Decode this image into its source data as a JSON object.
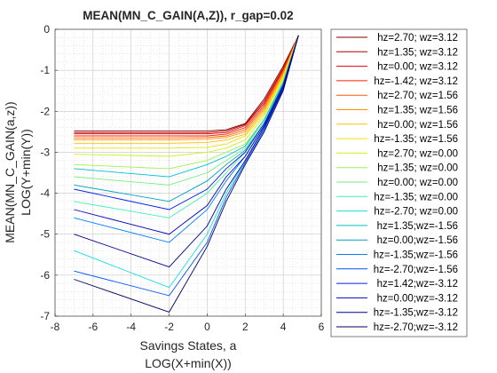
{
  "chart_data": {
    "type": "line",
    "title": "MEAN(MN_C_GAIN(A,Z)), r_gap=0.02",
    "xlabel": [
      "Savings States, a",
      "LOG(X+min(X))"
    ],
    "ylabel": [
      "MEAN(MN_C_GAIN(a,z))",
      "LOG(Y+min(Y))"
    ],
    "xlim": [
      -8,
      6
    ],
    "ylim": [
      -7,
      0
    ],
    "xticks": [
      -8,
      -6,
      -4,
      -2,
      0,
      2,
      4,
      6
    ],
    "yticks": [
      -7,
      -6,
      -5,
      -4,
      -3,
      -2,
      -1,
      0
    ],
    "grid": true,
    "minor_grid": true,
    "legend_position": "outside-right",
    "series_note": "Roughly 40 line series (many unlabeled) colored from dark blue through cyan/green/yellow to dark red; all converge to about y=-0.15 at x=4.8.",
    "series": [
      {
        "name": "hz=2.70; wz=3.12",
        "color": "#800000",
        "x": [
          -7,
          -2,
          0,
          1,
          2,
          3,
          4,
          4.8
        ],
        "y": [
          -2.48,
          -2.48,
          -2.48,
          -2.45,
          -2.3,
          -1.7,
          -0.9,
          -0.15
        ]
      },
      {
        "name": "hz=1.35; wz=3.12",
        "color": "#b00000",
        "x": [
          -7,
          -2,
          0,
          1,
          2,
          3,
          4,
          4.8
        ],
        "y": [
          -2.52,
          -2.52,
          -2.52,
          -2.48,
          -2.32,
          -1.75,
          -0.95,
          -0.15
        ]
      },
      {
        "name": "hz=0.00; wz=3.12",
        "color": "#e00000",
        "x": [
          -7,
          -2,
          0,
          1,
          2,
          3,
          4,
          4.8
        ],
        "y": [
          -2.55,
          -2.55,
          -2.55,
          -2.52,
          -2.35,
          -1.8,
          -0.98,
          -0.15
        ]
      },
      {
        "name": "hz=-1.42; wz=3.12",
        "color": "#ff2000",
        "x": [
          -7,
          -2,
          0,
          1,
          2,
          3,
          4,
          4.8
        ],
        "y": [
          -2.6,
          -2.6,
          -2.6,
          -2.56,
          -2.4,
          -1.85,
          -1.0,
          -0.15
        ]
      },
      {
        "name": "hz=2.70; wz=1.56",
        "color": "#ff5a00",
        "x": [
          -7,
          -2,
          0,
          1,
          2,
          3,
          4,
          4.8
        ],
        "y": [
          -2.65,
          -2.65,
          -2.64,
          -2.6,
          -2.45,
          -1.9,
          -1.05,
          -0.15
        ]
      },
      {
        "name": "hz=1.35; wz=1.56",
        "color": "#ff9000",
        "x": [
          -7,
          -2,
          0,
          1,
          2,
          3,
          4,
          4.8
        ],
        "y": [
          -2.7,
          -2.7,
          -2.68,
          -2.64,
          -2.5,
          -1.95,
          -1.08,
          -0.15
        ]
      },
      {
        "name": "hz=0.00; wz=1.56",
        "color": "#ffc000",
        "x": [
          -7,
          -2,
          0,
          1,
          2,
          3,
          4,
          4.8
        ],
        "y": [
          -2.78,
          -2.78,
          -2.76,
          -2.7,
          -2.56,
          -2.0,
          -1.12,
          -0.15
        ]
      },
      {
        "name": "hz=-1.35; wz=1.56",
        "color": "#f0e000",
        "x": [
          -7,
          -2,
          0,
          1,
          2,
          3,
          4,
          4.8
        ],
        "y": [
          -2.9,
          -2.9,
          -2.88,
          -2.8,
          -2.6,
          -2.05,
          -1.15,
          -0.15
        ]
      },
      {
        "name": "hz=2.70; wz=0.00",
        "color": "#d0f020",
        "x": [
          -7,
          -2,
          0,
          1,
          2,
          3,
          4,
          4.8
        ],
        "y": [
          -3.05,
          -3.1,
          -3.0,
          -2.9,
          -2.7,
          -2.1,
          -1.2,
          -0.15
        ]
      },
      {
        "name": "hz=1.35; wz=0.00",
        "color": "#a0f050",
        "x": [
          -7,
          -2,
          0,
          1,
          2,
          3,
          4,
          4.8
        ],
        "y": [
          -3.3,
          -3.4,
          -3.2,
          -3.0,
          -2.8,
          -2.2,
          -1.25,
          -0.15
        ]
      },
      {
        "name": "hz=0.00; wz=0.00",
        "color": "#70f080",
        "x": [
          -7,
          -2,
          0,
          1,
          2,
          3,
          4,
          4.8
        ],
        "y": [
          -3.6,
          -3.8,
          -3.5,
          -3.2,
          -2.9,
          -2.25,
          -1.3,
          -0.15
        ]
      },
      {
        "name": "hz=-1.35; wz=0.00",
        "color": "#40f0b0",
        "x": [
          -7,
          -2,
          0,
          1,
          2,
          3,
          4,
          4.8
        ],
        "y": [
          -4.2,
          -4.6,
          -4.0,
          -3.5,
          -3.0,
          -2.3,
          -1.35,
          -0.15
        ]
      },
      {
        "name": "hz=-2.70; wz=0.00",
        "color": "#10e0e0",
        "x": [
          -7,
          -2,
          0,
          1,
          2,
          3,
          4,
          4.8
        ],
        "y": [
          -5.4,
          -6.3,
          -5.0,
          -4.0,
          -3.2,
          -2.4,
          -1.4,
          -0.15
        ]
      },
      {
        "name": "hz=1.35;wz=-1.56",
        "color": "#00c0d0",
        "x": [
          -7,
          -2,
          0,
          1,
          2,
          3,
          4,
          4.8
        ],
        "y": [
          -3.4,
          -3.6,
          -3.3,
          -3.1,
          -2.85,
          -2.2,
          -1.3,
          -0.15
        ]
      },
      {
        "name": "hz=0.00;wz=-1.56",
        "color": "#00a0c0",
        "x": [
          -7,
          -2,
          0,
          1,
          2,
          3,
          4,
          4.8
        ],
        "y": [
          -3.8,
          -4.2,
          -3.7,
          -3.3,
          -2.95,
          -2.3,
          -1.35,
          -0.15
        ]
      },
      {
        "name": "hz=-1.35;wz=-1.56",
        "color": "#0080ff",
        "x": [
          -7,
          -2,
          0,
          1,
          2,
          3,
          4,
          4.8
        ],
        "y": [
          -4.6,
          -5.2,
          -4.4,
          -3.7,
          -3.1,
          -2.35,
          -1.4,
          -0.15
        ]
      },
      {
        "name": "hz=-2.70;wz=-1.56",
        "color": "#0050ff",
        "x": [
          -7,
          -2,
          0,
          1,
          2,
          3,
          4,
          4.8
        ],
        "y": [
          -5.9,
          -6.5,
          -5.2,
          -4.1,
          -3.25,
          -2.45,
          -1.45,
          -0.15
        ]
      },
      {
        "name": "hz=1.42;wz=-3.12",
        "color": "#0020e0",
        "x": [
          -7,
          -2,
          0,
          1,
          2,
          3,
          4,
          4.8
        ],
        "y": [
          -3.9,
          -4.4,
          -3.9,
          -3.4,
          -3.0,
          -2.3,
          -1.35,
          -0.15
        ]
      },
      {
        "name": "hz=0.00;wz=-3.12",
        "color": "#0000c0",
        "x": [
          -7,
          -2,
          0,
          1,
          2,
          3,
          4,
          4.8
        ],
        "y": [
          -4.4,
          -5.0,
          -4.3,
          -3.6,
          -3.1,
          -2.35,
          -1.4,
          -0.15
        ]
      },
      {
        "name": "hz=-1.35;wz=-3.12",
        "color": "#000090",
        "x": [
          -7,
          -2,
          0,
          1,
          2,
          3,
          4,
          4.8
        ],
        "y": [
          -5.0,
          -5.8,
          -4.8,
          -3.9,
          -3.2,
          -2.4,
          -1.45,
          -0.15
        ]
      },
      {
        "name": "hz=-2.70;wz=-3.12",
        "color": "#000060",
        "x": [
          -7,
          -2,
          0,
          1,
          2,
          3,
          4,
          4.8
        ],
        "y": [
          -6.1,
          -6.9,
          -5.3,
          -4.2,
          -3.3,
          -2.5,
          -1.5,
          -0.15
        ]
      }
    ]
  }
}
